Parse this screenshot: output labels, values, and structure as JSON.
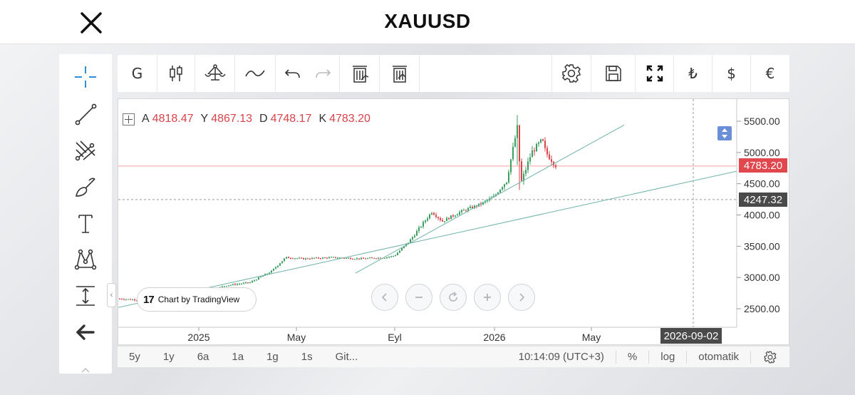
{
  "header": {
    "title": "XAUUSD",
    "close_icon": "close-icon"
  },
  "left_tools": [
    {
      "name": "crosshair-tool",
      "icon": "crosshair-icon"
    },
    {
      "name": "trend-line-tool",
      "icon": "trend-line-icon"
    },
    {
      "name": "pitchfork-tool",
      "icon": "pitchfork-icon"
    },
    {
      "name": "brush-tool",
      "icon": "brush-icon"
    },
    {
      "name": "text-tool",
      "icon": "text-icon"
    },
    {
      "name": "pattern-tool",
      "icon": "pattern-icon"
    },
    {
      "name": "measure-tool",
      "icon": "measure-icon"
    },
    {
      "name": "back-tool",
      "icon": "arrow-left-icon"
    }
  ],
  "top_toolbar": {
    "interval_label": "G",
    "currency_try": "₺",
    "currency_usd": "$",
    "currency_eur": "€"
  },
  "ohlc": {
    "open_label": "A",
    "open": "4818.47",
    "high_label": "Y",
    "high": "4867.13",
    "low_label": "D",
    "low": "4748.17",
    "close_label": "K",
    "close": "4783.20"
  },
  "price_tags": {
    "last_price": "4783.20",
    "crosshair_price": "4247.32",
    "crosshair_date": "2026-09-02",
    "last_price_color": "#e0484e",
    "crosshair_color": "#4a4a4a"
  },
  "badge": {
    "logo": "17",
    "text": "Chart by TradingView"
  },
  "bottom_bar": {
    "ranges": [
      "5y",
      "1y",
      "6a",
      "1a",
      "1g",
      "1s",
      "Git..."
    ],
    "time": "10:14:09",
    "timezone": "(UTC+3)",
    "percent": "%",
    "log": "log",
    "auto": "otomatik"
  },
  "chart_data": {
    "type": "candlestick",
    "symbol": "XAUUSD",
    "y_ticks": [
      "5500.00",
      "5000.00",
      "4500.00",
      "4000.00",
      "3500.00",
      "3000.00",
      "2500.00"
    ],
    "x_ticks": [
      "2025",
      "May",
      "Eyl",
      "2026",
      "May"
    ],
    "ylim": [
      2250,
      5650
    ],
    "last_price": 4783.2,
    "grid": false,
    "series": [
      {
        "name": "",
        "x": [
          "2024-11",
          "2024-12",
          "2025-01",
          "2025-02",
          "2025-03",
          "2025-04",
          "2025-05",
          "2025-06",
          "2025-07",
          "2025-08",
          "2025-09",
          "2025-10",
          "2025-11",
          "2025-12",
          "2026-01",
          "2026-02",
          "2026-03"
        ],
        "y": [
          2650,
          2640,
          2760,
          2900,
          3100,
          3300,
          3320,
          3350,
          3330,
          3400,
          3700,
          4100,
          4050,
          4300,
          5200,
          5000,
          4783
        ]
      }
    ],
    "trend_lines": [
      "trend-line-upper",
      "trend-line-lower"
    ]
  }
}
